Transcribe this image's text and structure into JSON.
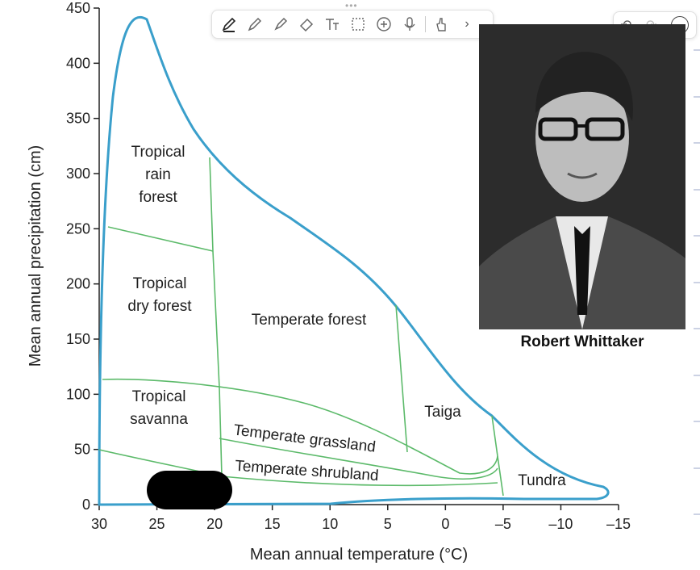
{
  "chart_data": {
    "type": "diagram",
    "xlabel": "Mean annual temperature (°C)",
    "ylabel": "Mean annual precipitation (cm)",
    "x_ticks": [
      "30",
      "25",
      "20",
      "15",
      "10",
      "5",
      "0",
      "–5",
      "–10",
      "–15"
    ],
    "y_ticks": [
      "0",
      "50",
      "100",
      "150",
      "200",
      "250",
      "300",
      "350",
      "400",
      "450"
    ],
    "xlim": [
      30,
      -15
    ],
    "ylim": [
      0,
      450
    ],
    "biomes": [
      {
        "key": "rain",
        "lines": [
          "Tropical",
          "rain",
          "forest"
        ]
      },
      {
        "key": "dry",
        "lines": [
          "Tropical",
          "dry forest"
        ]
      },
      {
        "key": "savanna",
        "lines": [
          "Tropical",
          "savanna"
        ]
      },
      {
        "key": "temperate_forest",
        "lines": [
          "Temperate forest"
        ]
      },
      {
        "key": "grassland",
        "lines": [
          "Temperate grassland"
        ]
      },
      {
        "key": "shrubland",
        "lines": [
          "Temperate shrubland"
        ]
      },
      {
        "key": "taiga",
        "lines": [
          "Taiga"
        ]
      },
      {
        "key": "tundra",
        "lines": [
          "Tundra"
        ]
      }
    ],
    "colors": {
      "outline": "#3a9fcb",
      "boundaries": "#5cba6a",
      "axis": "#222222"
    }
  },
  "photo": {
    "caption": "Robert Whittaker"
  },
  "toolbar": {
    "tools": [
      "pen-icon",
      "pencil-icon",
      "highlighter-icon",
      "eraser-icon",
      "text-icon",
      "lasso-icon",
      "add-icon",
      "microphone-icon",
      "touch-icon",
      "chevron-right-icon"
    ],
    "more_glyph": "›",
    "undo_glyph": "↶",
    "redo_glyph": "↷",
    "menu_glyph": "···"
  }
}
